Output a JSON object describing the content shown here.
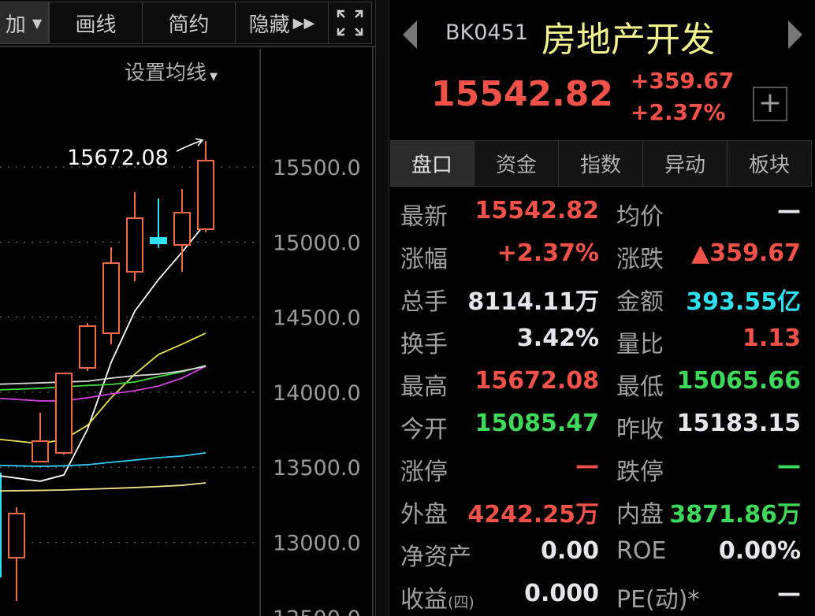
{
  "toolbar": {
    "items": [
      {
        "label": "加",
        "has_dropdown": true
      },
      {
        "label": "画线"
      },
      {
        "label": "简约"
      },
      {
        "label": "隐藏",
        "icon": "double-chevron-right-icon"
      },
      {
        "icon": "fullscreen-expand-icon"
      }
    ],
    "ma_setting_label": "设置均线"
  },
  "chart_data": {
    "type": "candlestick",
    "y_ticks": [
      "15500.0",
      "15000.0",
      "14500.0",
      "14000.0",
      "13500.0",
      "13000.0",
      "12500.0"
    ],
    "ylim": [
      12500,
      15800
    ],
    "grid": true,
    "annotation": {
      "label": "15672.08",
      "value": 15672.08
    },
    "candles": [
      {
        "open": 12898,
        "close": 13192,
        "high": 13233,
        "low": 12609
      },
      {
        "open": 13538,
        "close": 13674,
        "high": 13863,
        "low": 13538
      },
      {
        "open": 13596,
        "close": 14125,
        "high": 14125,
        "low": 13585
      },
      {
        "open": 14162,
        "close": 14440,
        "high": 14461,
        "low": 14141
      },
      {
        "open": 14393,
        "close": 14860,
        "high": 14965,
        "low": 14320
      },
      {
        "open": 14802,
        "close": 15159,
        "high": 15332,
        "low": 14739
      },
      {
        "open": 15028,
        "close": 14991,
        "high": 15290,
        "low": 14960
      },
      {
        "open": 14981,
        "close": 15196,
        "high": 15353,
        "low": 14802
      },
      {
        "open": 15085.47,
        "close": 15542.82,
        "high": 15672.08,
        "low": 15065.66
      }
    ],
    "moving_averages": [
      {
        "color": "#ffffff",
        "values": [
          13428,
          13407,
          13449,
          13753,
          14199,
          14540,
          14750,
          14933,
          15127
        ]
      },
      {
        "color": "#e8e04a",
        "values": [
          13674,
          13658,
          13685,
          13779,
          13963,
          14120,
          14251,
          14320,
          14393
        ]
      },
      {
        "color": "#d040d8",
        "values": [
          13952,
          13942,
          13942,
          13963,
          13989,
          14010,
          14041,
          14094,
          14173
        ]
      },
      {
        "color": "#3ed83e",
        "values": [
          14020,
          14026,
          14036,
          14045,
          14052,
          14068,
          14104,
          14136,
          14178
        ]
      },
      {
        "color": "#d8d8d8",
        "values": [
          14057,
          14062,
          14068,
          14073,
          14094,
          14110,
          14120,
          14141,
          14173
        ]
      },
      {
        "color": "#30c8f0",
        "values": [
          13510,
          13506,
          13510,
          13517,
          13533,
          13548,
          13564,
          13575,
          13596
        ]
      },
      {
        "color": "#f0e08a",
        "values": [
          13344,
          13346,
          13349,
          13354,
          13359,
          13365,
          13372,
          13380,
          13396
        ]
      }
    ],
    "up_color": "#f06a4a",
    "down_color": "#30e0f0"
  },
  "quote": {
    "code": "BK0451",
    "name": "房地产开发",
    "price": "15542.82",
    "change": "+359.67",
    "change_pct": "+2.37%",
    "add_label": "+"
  },
  "tabs": [
    "盘口",
    "资金",
    "指数",
    "异动",
    "板块"
  ],
  "rows": [
    {
      "l1": "最新",
      "v1": "15542.82",
      "c1": "red",
      "l2": "均价",
      "v2": "—",
      "c2": "white"
    },
    {
      "l1": "涨幅",
      "v1": "+2.37%",
      "c1": "red",
      "l2": "涨跌",
      "v2": "▲359.67",
      "c2": "red"
    },
    {
      "l1": "总手",
      "v1": "8114.11万",
      "c1": "white",
      "l2": "金额",
      "v2": "393.55亿",
      "c2": "cyan"
    },
    {
      "l1": "换手",
      "v1": "3.42%",
      "c1": "white",
      "l2": "量比",
      "v2": "1.13",
      "c2": "red"
    },
    {
      "l1": "最高",
      "v1": "15672.08",
      "c1": "red",
      "l2": "最低",
      "v2": "15065.66",
      "c2": "green"
    },
    {
      "l1": "今开",
      "v1": "15085.47",
      "c1": "green",
      "l2": "昨收",
      "v2": "15183.15",
      "c2": "white"
    },
    {
      "l1": "涨停",
      "v1": "—",
      "c1": "red",
      "l2": "跌停",
      "v2": "—",
      "c2": "green"
    },
    {
      "l1": "外盘",
      "v1": "4242.25万",
      "c1": "red",
      "l2": "内盘",
      "v2": "3871.86万",
      "c2": "green"
    },
    {
      "l1": "净资产",
      "v1": "0.00",
      "c1": "white",
      "l2": "ROE",
      "v2": "0.00%",
      "c2": "white"
    },
    {
      "l1": "收益",
      "l1_suffix": "(四)",
      "v1": "0.000",
      "c1": "white",
      "l2": "PE(动)*",
      "v2": "—",
      "c2": "white"
    }
  ]
}
